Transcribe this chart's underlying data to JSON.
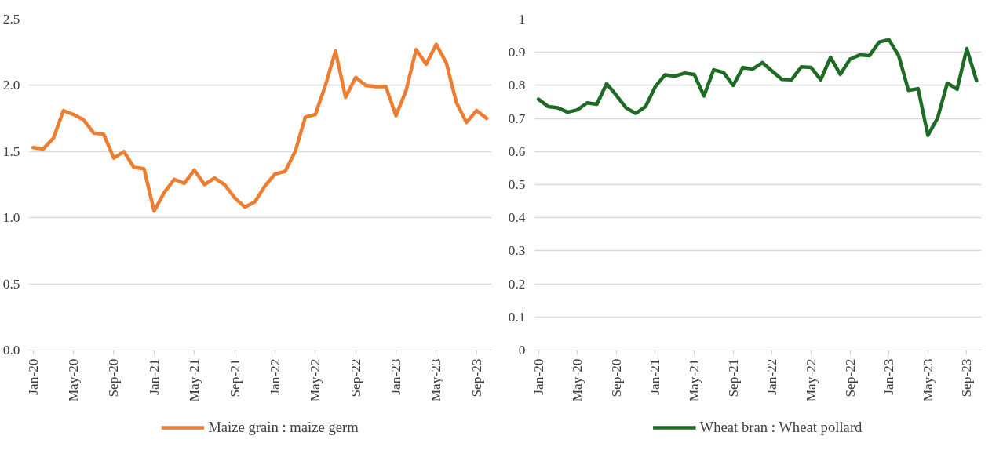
{
  "chart_data": [
    {
      "type": "line",
      "categories": [
        "Jan-20",
        null,
        null,
        null,
        "May-20",
        null,
        null,
        null,
        "Sep-20",
        null,
        null,
        null,
        "Jan-21",
        null,
        null,
        null,
        "May-21",
        null,
        null,
        null,
        "Sep-21",
        null,
        null,
        null,
        "Jan-22",
        null,
        null,
        null,
        "May-22",
        null,
        null,
        null,
        "Sep-22",
        null,
        null,
        null,
        "Jan-23",
        null,
        null,
        null,
        "May-23",
        null,
        null,
        null,
        "Sep-23",
        null
      ],
      "series": [
        {
          "name": "Maize grain : maize germ",
          "color": "#ed7d31",
          "values": [
            1.53,
            1.52,
            1.6,
            1.81,
            1.78,
            1.74,
            1.64,
            1.63,
            1.45,
            1.5,
            1.38,
            1.37,
            1.05,
            1.19,
            1.29,
            1.26,
            1.36,
            1.25,
            1.3,
            1.25,
            1.15,
            1.08,
            1.12,
            1.24,
            1.33,
            1.35,
            1.5,
            1.76,
            1.78,
            2.0,
            2.26,
            1.91,
            2.06,
            2.0,
            1.99,
            1.99,
            1.77,
            1.96,
            2.27,
            2.16,
            2.31,
            2.17,
            1.87,
            1.72,
            1.81,
            1.75
          ]
        }
      ],
      "ylim": [
        0,
        2.5
      ],
      "yticks": [
        {
          "value": 0,
          "label": "0.0"
        },
        {
          "value": 0.5,
          "label": "0.5"
        },
        {
          "value": 1,
          "label": "1.0"
        },
        {
          "value": 1.5,
          "label": "1.5"
        },
        {
          "value": 2,
          "label": "2.0"
        },
        {
          "value": 2.5,
          "label": "2.5"
        }
      ],
      "grid": "y",
      "legend": "bottom",
      "line_style": "solid",
      "marker": "none"
    },
    {
      "type": "line",
      "categories": [
        "Jan-20",
        null,
        null,
        null,
        "May-20",
        null,
        null,
        null,
        "Sep-20",
        null,
        null,
        null,
        "Jan-21",
        null,
        null,
        null,
        "May-21",
        null,
        null,
        null,
        "Sep-21",
        null,
        null,
        null,
        "Jan-22",
        null,
        null,
        null,
        "May-22",
        null,
        null,
        null,
        "Sep-22",
        null,
        null,
        null,
        "Jan-23",
        null,
        null,
        null,
        "May-23",
        null,
        null,
        null,
        "Sep-23",
        null
      ],
      "series": [
        {
          "name": "Wheat bran : Wheat pollard",
          "color": "#1e6b23",
          "values": [
            0.758,
            0.736,
            0.732,
            0.719,
            0.726,
            0.747,
            0.743,
            0.805,
            0.77,
            0.732,
            0.715,
            0.736,
            0.796,
            0.832,
            0.828,
            0.837,
            0.833,
            0.768,
            0.847,
            0.839,
            0.8,
            0.854,
            0.849,
            0.869,
            0.843,
            0.818,
            0.817,
            0.856,
            0.854,
            0.817,
            0.885,
            0.833,
            0.879,
            0.892,
            0.89,
            0.931,
            0.938,
            0.89,
            0.785,
            0.79,
            0.649,
            0.701,
            0.807,
            0.788,
            0.911,
            0.814
          ]
        }
      ],
      "ylim": [
        0,
        1
      ],
      "yticks": [
        0,
        0.1,
        0.2,
        0.3,
        0.4,
        0.5,
        0.6,
        0.7,
        0.8,
        0.9,
        1
      ],
      "grid": "y",
      "legend": "bottom",
      "line_style": "solid",
      "marker": "none"
    }
  ]
}
